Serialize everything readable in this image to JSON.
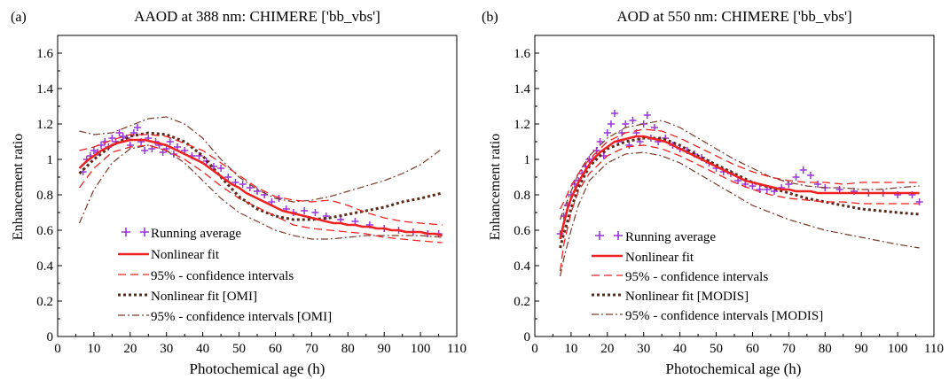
{
  "chart_data": [
    {
      "type": "scatter",
      "panel_label": "(a)",
      "title": "AAOD at 388 nm: CHIMERE ['bb_vbs']",
      "xlabel": "Photochemical age (h)",
      "ylabel": "Enhancement ratio",
      "xlim": [
        0,
        110
      ],
      "ylim": [
        0,
        1.7
      ],
      "x_ticks": [
        "0",
        "10",
        "20",
        "30",
        "40",
        "50",
        "60",
        "70",
        "80",
        "90",
        "100",
        "110"
      ],
      "y_ticks": [
        "0",
        "0.2",
        "0.4",
        "0.6",
        "0.8",
        "1",
        "1.2",
        "1.4",
        "1.6"
      ],
      "legend": [
        "Running average",
        "Nonlinear fit",
        "95% - confidence intervals",
        "Nonlinear fit [OMI]",
        "95% - confidence intervals [OMI]"
      ],
      "legend_position": "bottom-left",
      "series": [
        {
          "name": "Running average",
          "style": "plus",
          "color": "#9933dd",
          "x": [
            7,
            8,
            9,
            10,
            11,
            12,
            13,
            14,
            15,
            16,
            17,
            18,
            19,
            20,
            21,
            22,
            23,
            24,
            25,
            26,
            27,
            28,
            29,
            30,
            31,
            32,
            33,
            35,
            37,
            39,
            41,
            43,
            45,
            47,
            49,
            51,
            53,
            55,
            57,
            59,
            61,
            63,
            65,
            68,
            71,
            74,
            78,
            82,
            86,
            90,
            94,
            98,
            102,
            105
          ],
          "y": [
            0.93,
            1.0,
            1.02,
            1.05,
            1.04,
            1.08,
            1.1,
            1.07,
            1.12,
            1.1,
            1.15,
            1.13,
            1.12,
            1.08,
            1.15,
            1.18,
            1.1,
            1.05,
            1.12,
            1.06,
            1.1,
            1.08,
            1.04,
            1.06,
            1.1,
            1.03,
            1.07,
            1.05,
            1.02,
            1.02,
            0.99,
            0.96,
            0.95,
            0.9,
            0.87,
            0.86,
            0.84,
            0.82,
            0.8,
            0.76,
            0.78,
            0.72,
            0.7,
            0.71,
            0.7,
            0.68,
            0.66,
            0.65,
            0.63,
            0.61,
            0.6,
            0.59,
            0.58,
            0.58
          ]
        },
        {
          "name": "Nonlinear fit",
          "style": "line",
          "color": "#ee2222",
          "x": [
            6,
            8,
            10,
            12,
            14,
            16,
            18,
            20,
            22,
            24,
            26,
            28,
            30,
            32,
            34,
            36,
            38,
            40,
            42,
            44,
            46,
            48,
            50,
            52,
            54,
            56,
            58,
            60,
            62,
            64,
            66,
            68,
            70,
            72,
            74,
            76,
            78,
            80,
            82,
            84,
            86,
            88,
            90,
            92,
            94,
            96,
            98,
            100,
            102,
            104,
            106
          ],
          "y": [
            0.95,
            0.99,
            1.02,
            1.05,
            1.07,
            1.09,
            1.1,
            1.11,
            1.11,
            1.11,
            1.1,
            1.09,
            1.08,
            1.06,
            1.04,
            1.02,
            1.0,
            0.98,
            0.95,
            0.92,
            0.89,
            0.86,
            0.84,
            0.81,
            0.79,
            0.77,
            0.75,
            0.73,
            0.71,
            0.7,
            0.69,
            0.68,
            0.67,
            0.66,
            0.65,
            0.64,
            0.64,
            0.63,
            0.63,
            0.62,
            0.62,
            0.61,
            0.61,
            0.6,
            0.6,
            0.59,
            0.59,
            0.59,
            0.58,
            0.58,
            0.57
          ]
        },
        {
          "name": "95% - confidence intervals (upper)",
          "style": "dashed",
          "color": "#ee2222",
          "x": [
            6,
            10,
            15,
            20,
            25,
            30,
            35,
            40,
            45,
            50,
            55,
            60,
            65,
            70,
            75,
            80,
            85,
            90,
            95,
            100,
            106
          ],
          "y": [
            1.05,
            1.07,
            1.11,
            1.14,
            1.14,
            1.13,
            1.09,
            1.05,
            0.98,
            0.91,
            0.84,
            0.79,
            0.77,
            0.76,
            0.77,
            0.74,
            0.7,
            0.67,
            0.65,
            0.64,
            0.63
          ]
        },
        {
          "name": "95% - confidence intervals (lower)",
          "style": "dashed",
          "color": "#ee2222",
          "x": [
            6,
            10,
            15,
            20,
            25,
            30,
            35,
            40,
            45,
            50,
            55,
            60,
            65,
            70,
            75,
            80,
            85,
            90,
            95,
            100,
            106
          ],
          "y": [
            0.84,
            0.95,
            1.04,
            1.07,
            1.08,
            1.05,
            1.0,
            0.93,
            0.85,
            0.78,
            0.73,
            0.68,
            0.63,
            0.61,
            0.6,
            0.59,
            0.58,
            0.56,
            0.55,
            0.54,
            0.53
          ]
        },
        {
          "name": "Nonlinear fit [OMI]",
          "style": "dotted",
          "color": "#5a2a1a",
          "x": [
            6,
            10,
            15,
            20,
            25,
            30,
            35,
            40,
            45,
            50,
            55,
            60,
            65,
            70,
            75,
            80,
            85,
            90,
            95,
            100,
            106
          ],
          "y": [
            0.92,
            1.0,
            1.08,
            1.13,
            1.15,
            1.14,
            1.1,
            1.02,
            0.9,
            0.79,
            0.72,
            0.68,
            0.66,
            0.66,
            0.67,
            0.69,
            0.71,
            0.73,
            0.76,
            0.78,
            0.81
          ]
        },
        {
          "name": "95% - confidence intervals [OMI] (upper)",
          "style": "dashdot",
          "color": "#7a3a2a",
          "x": [
            6,
            10,
            15,
            20,
            25,
            30,
            35,
            40,
            45,
            50,
            55,
            60,
            65,
            70,
            75,
            80,
            85,
            90,
            95,
            100,
            106
          ],
          "y": [
            1.16,
            1.14,
            1.15,
            1.19,
            1.23,
            1.24,
            1.2,
            1.12,
            1.0,
            0.9,
            0.83,
            0.78,
            0.76,
            0.77,
            0.79,
            0.82,
            0.85,
            0.88,
            0.92,
            0.97,
            1.06
          ]
        },
        {
          "name": "95% - confidence intervals [OMI] (lower)",
          "style": "dashdot",
          "color": "#7a3a2a",
          "x": [
            6,
            10,
            15,
            20,
            25,
            30,
            35,
            40,
            45,
            50,
            55,
            60,
            65,
            70,
            75,
            80,
            85,
            90,
            95,
            100,
            106
          ],
          "y": [
            0.64,
            0.83,
            0.98,
            1.06,
            1.08,
            1.05,
            0.98,
            0.88,
            0.78,
            0.7,
            0.65,
            0.6,
            0.57,
            0.55,
            0.55,
            0.56,
            0.57,
            0.57,
            0.57,
            0.57,
            0.56
          ]
        }
      ]
    },
    {
      "type": "scatter",
      "panel_label": "(b)",
      "title": "AOD at 550 nm: CHIMERE ['bb_vbs']",
      "xlabel": "Photochemical age (h)",
      "ylabel": "Enhancement ratio",
      "xlim": [
        0,
        110
      ],
      "ylim": [
        0,
        1.7
      ],
      "x_ticks": [
        "0",
        "10",
        "20",
        "30",
        "40",
        "50",
        "60",
        "70",
        "80",
        "90",
        "100",
        "110"
      ],
      "y_ticks": [
        "0",
        "0.2",
        "0.4",
        "0.6",
        "0.8",
        "1",
        "1.2",
        "1.4",
        "1.6"
      ],
      "legend": [
        "Running average",
        "Nonlinear fit",
        "95% - confidence intervals",
        "Nonlinear fit  [MODIS]",
        "95% - confidence intervals [MODIS]"
      ],
      "legend_position": "bottom-left",
      "series": [
        {
          "name": "Running average",
          "style": "plus",
          "color": "#9933dd",
          "x": [
            7,
            8,
            9,
            10,
            11,
            12,
            13,
            14,
            15,
            16,
            17,
            18,
            19,
            20,
            21,
            22,
            23,
            24,
            25,
            26,
            27,
            28,
            29,
            30,
            31,
            32,
            33,
            34,
            36,
            38,
            40,
            42,
            44,
            46,
            48,
            50,
            52,
            54,
            56,
            58,
            60,
            62,
            64,
            66,
            68,
            70,
            72,
            74,
            76,
            78,
            80,
            84,
            88,
            92,
            96,
            100,
            104,
            106
          ],
          "y": [
            0.58,
            0.68,
            0.74,
            0.8,
            0.86,
            0.88,
            0.92,
            0.96,
            1.0,
            1.0,
            1.05,
            1.1,
            1.02,
            1.15,
            1.2,
            1.26,
            1.1,
            1.15,
            1.2,
            1.08,
            1.22,
            1.15,
            1.1,
            1.2,
            1.25,
            1.12,
            1.18,
            1.1,
            1.12,
            1.08,
            1.06,
            1.05,
            1.03,
            1.01,
            0.98,
            0.95,
            0.93,
            0.92,
            0.88,
            0.86,
            0.85,
            0.83,
            0.83,
            0.82,
            0.84,
            0.86,
            0.9,
            0.94,
            0.91,
            0.86,
            0.84,
            0.83,
            0.82,
            0.81,
            0.81,
            0.8,
            0.8,
            0.76
          ]
        },
        {
          "name": "Nonlinear fit",
          "style": "line",
          "color": "#ee2222",
          "x": [
            7,
            8,
            9,
            10,
            12,
            14,
            16,
            18,
            20,
            22,
            24,
            26,
            28,
            30,
            32,
            34,
            36,
            38,
            40,
            42,
            44,
            46,
            48,
            50,
            52,
            54,
            56,
            58,
            60,
            62,
            64,
            66,
            68,
            70,
            72,
            74,
            76,
            78,
            80,
            84,
            88,
            92,
            96,
            100,
            106
          ],
          "y": [
            0.55,
            0.64,
            0.72,
            0.78,
            0.87,
            0.94,
            1.0,
            1.04,
            1.07,
            1.1,
            1.11,
            1.12,
            1.13,
            1.13,
            1.12,
            1.11,
            1.1,
            1.08,
            1.06,
            1.04,
            1.02,
            1.0,
            0.98,
            0.96,
            0.94,
            0.92,
            0.9,
            0.88,
            0.87,
            0.86,
            0.85,
            0.84,
            0.83,
            0.83,
            0.82,
            0.82,
            0.82,
            0.81,
            0.81,
            0.81,
            0.81,
            0.81,
            0.81,
            0.81,
            0.81
          ]
        },
        {
          "name": "95% - confidence intervals (upper)",
          "style": "dashed",
          "color": "#ee2222",
          "x": [
            7,
            8,
            10,
            12,
            15,
            20,
            25,
            30,
            35,
            40,
            45,
            50,
            55,
            60,
            65,
            70,
            75,
            80,
            85,
            90,
            95,
            100,
            106
          ],
          "y": [
            0.72,
            0.76,
            0.85,
            0.92,
            1.0,
            1.1,
            1.15,
            1.17,
            1.16,
            1.12,
            1.07,
            1.02,
            0.97,
            0.93,
            0.9,
            0.88,
            0.87,
            0.87,
            0.86,
            0.87,
            0.87,
            0.87,
            0.87
          ]
        },
        {
          "name": "95% - confidence intervals (lower)",
          "style": "dashed",
          "color": "#ee2222",
          "x": [
            7,
            8,
            10,
            12,
            15,
            20,
            25,
            30,
            35,
            40,
            45,
            50,
            55,
            60,
            65,
            70,
            75,
            80,
            85,
            90,
            95,
            100,
            106
          ],
          "y": [
            0.37,
            0.52,
            0.7,
            0.82,
            0.92,
            1.02,
            1.07,
            1.08,
            1.06,
            1.02,
            0.97,
            0.92,
            0.87,
            0.83,
            0.8,
            0.78,
            0.77,
            0.76,
            0.76,
            0.75,
            0.75,
            0.75,
            0.75
          ]
        },
        {
          "name": "Nonlinear fit  [MODIS]",
          "style": "dotted",
          "color": "#5a2a1a",
          "x": [
            7,
            8,
            10,
            12,
            15,
            20,
            25,
            30,
            35,
            40,
            45,
            50,
            55,
            60,
            65,
            70,
            75,
            80,
            85,
            90,
            95,
            100,
            106
          ],
          "y": [
            0.5,
            0.58,
            0.72,
            0.84,
            0.96,
            1.06,
            1.1,
            1.12,
            1.12,
            1.08,
            1.02,
            0.97,
            0.92,
            0.87,
            0.84,
            0.81,
            0.78,
            0.76,
            0.74,
            0.72,
            0.71,
            0.7,
            0.69
          ]
        },
        {
          "name": "95% - confidence intervals [MODIS] (upper)",
          "style": "dashdot",
          "color": "#7a3a2a",
          "x": [
            7,
            8,
            10,
            12,
            15,
            20,
            25,
            30,
            35,
            40,
            45,
            50,
            55,
            60,
            65,
            70,
            75,
            80,
            85,
            90,
            95,
            100,
            106
          ],
          "y": [
            0.66,
            0.72,
            0.82,
            0.92,
            1.02,
            1.12,
            1.18,
            1.2,
            1.22,
            1.18,
            1.12,
            1.06,
            1.0,
            0.95,
            0.9,
            0.87,
            0.85,
            0.84,
            0.84,
            0.83,
            0.83,
            0.84,
            0.85
          ]
        },
        {
          "name": "95% - confidence intervals [MODIS] (lower)",
          "style": "dashdot",
          "color": "#7a3a2a",
          "x": [
            7,
            8,
            10,
            12,
            15,
            20,
            25,
            30,
            35,
            40,
            45,
            50,
            55,
            60,
            65,
            70,
            75,
            80,
            85,
            90,
            95,
            100,
            106
          ],
          "y": [
            0.34,
            0.44,
            0.6,
            0.74,
            0.88,
            0.98,
            1.03,
            1.04,
            1.02,
            0.98,
            0.92,
            0.86,
            0.8,
            0.74,
            0.7,
            0.66,
            0.63,
            0.6,
            0.58,
            0.56,
            0.54,
            0.52,
            0.5
          ]
        }
      ]
    }
  ]
}
